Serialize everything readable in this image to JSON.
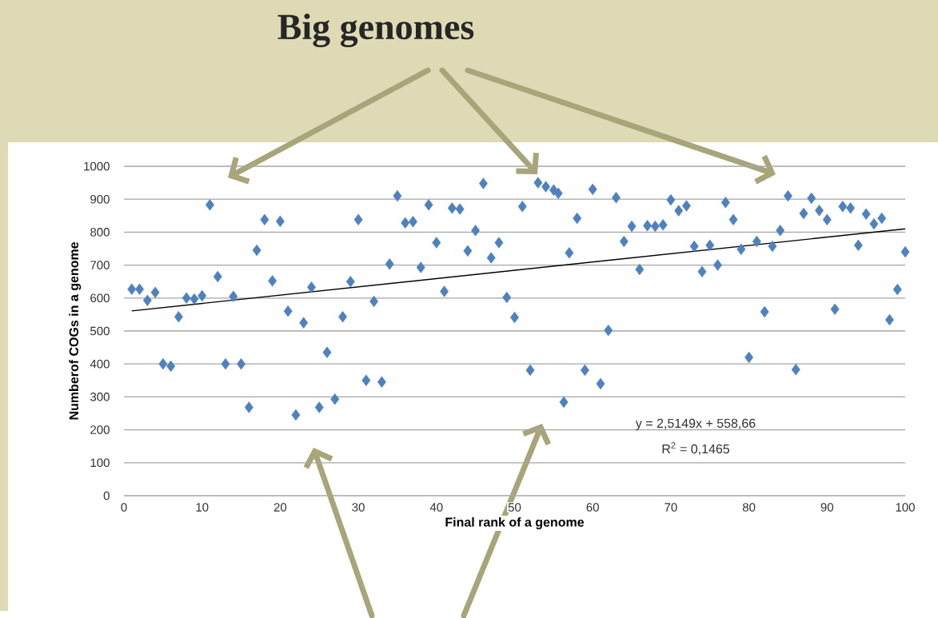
{
  "chart_data": {
    "type": "scatter",
    "title": "Big genomes",
    "xlabel": "Final rank of a genome",
    "ylabel": "Numberof COGs in a genome",
    "annotations": [
      "y = 2,5149x + 558,66",
      "R$^{2}$ = 0,1465"
    ],
    "xlim": [
      0,
      100
    ],
    "ylim": [
      0,
      1000
    ],
    "xticks": [
      0,
      10,
      20,
      30,
      40,
      50,
      60,
      70,
      80,
      90,
      100
    ],
    "yticks": [
      0,
      100,
      200,
      300,
      400,
      500,
      600,
      700,
      800,
      900,
      1000
    ],
    "grid": "y",
    "marker": "diamond",
    "series": [
      {
        "color": "#4f81bd",
        "x": [
          1,
          2,
          3,
          4,
          5,
          6,
          7,
          8,
          9,
          10,
          11,
          12,
          13,
          14,
          15,
          16,
          17,
          18,
          19,
          20,
          21,
          22,
          23,
          24,
          25,
          26,
          27,
          28,
          29,
          30,
          31,
          32,
          33,
          34,
          35,
          36,
          37,
          38,
          39,
          40,
          41,
          42,
          43,
          44,
          45,
          46,
          47,
          48,
          49,
          50,
          51,
          52,
          53,
          54,
          55,
          55.6,
          56.3,
          57,
          58,
          59,
          60,
          61,
          62,
          63,
          64,
          65,
          66,
          67,
          68,
          69,
          70,
          71,
          72,
          73,
          74,
          75,
          76,
          77,
          78,
          79,
          80,
          81,
          82,
          83,
          84,
          85,
          86,
          87,
          88,
          89,
          90,
          91,
          92,
          93,
          94,
          95,
          96,
          97,
          98,
          99,
          100
        ],
        "values": [
          627,
          627,
          593,
          617,
          400,
          393,
          543,
          600,
          597,
          607,
          883,
          665,
          400,
          605,
          400,
          268,
          745,
          838,
          652,
          833,
          560,
          245,
          525,
          633,
          268,
          435,
          293,
          543,
          650,
          838,
          350,
          590,
          345,
          703,
          910,
          828,
          832,
          693,
          883,
          768,
          620,
          873,
          870,
          743,
          805,
          948,
          722,
          768,
          602,
          541,
          878,
          381,
          950,
          938,
          928,
          918,
          284,
          737,
          842,
          381,
          930,
          340,
          502,
          905,
          772,
          818,
          687,
          820,
          818,
          822,
          898,
          865,
          880,
          757,
          680,
          760,
          700,
          890,
          838,
          748,
          420,
          772,
          558,
          757,
          805,
          910,
          383,
          857,
          903,
          866,
          838,
          566,
          878,
          873,
          760,
          855,
          825,
          842,
          534,
          626,
          740
        ]
      },
      {
        "type": "line",
        "marker": "none",
        "color": "#000000",
        "x": [
          1,
          100
        ],
        "values": [
          561,
          810
        ]
      }
    ]
  }
}
